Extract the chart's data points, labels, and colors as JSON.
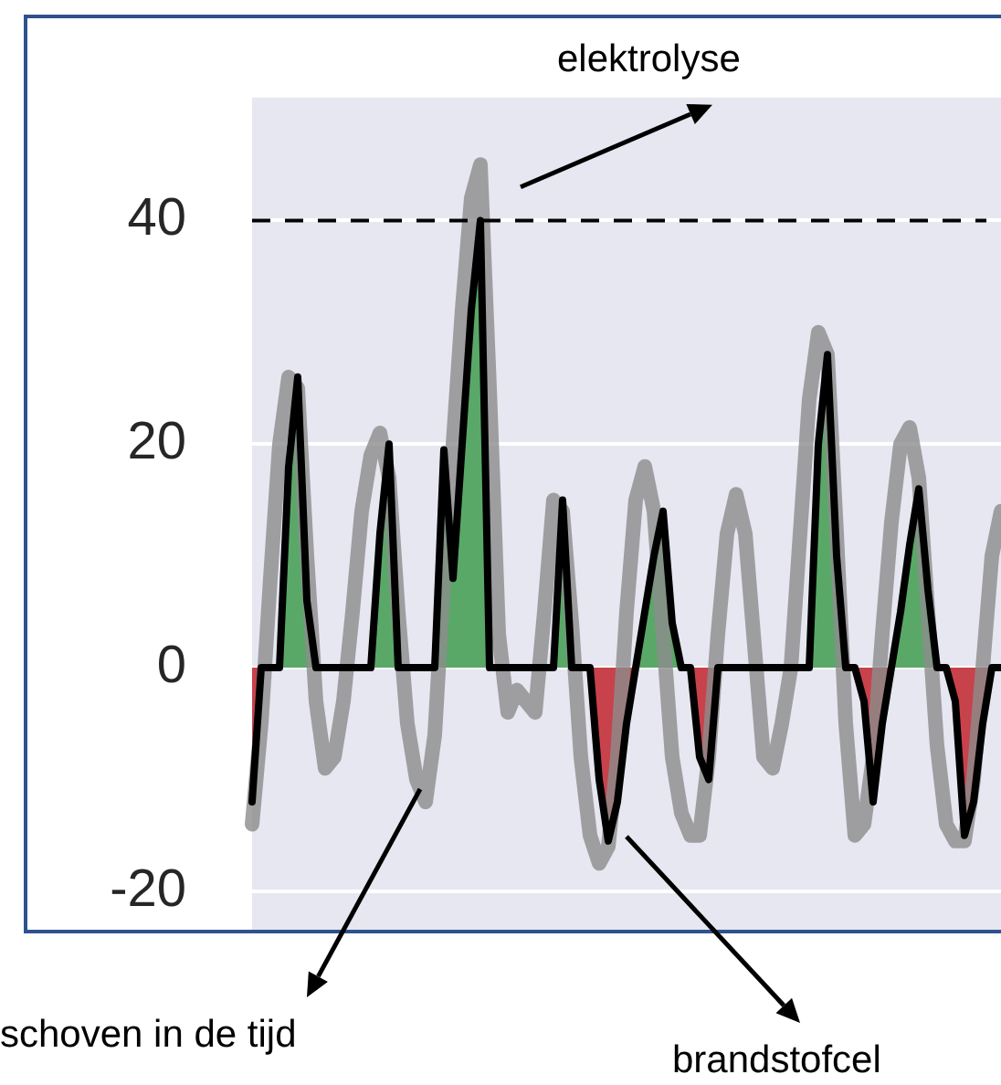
{
  "chart_data": {
    "type": "line",
    "categories": [
      null,
      null,
      null,
      null,
      null,
      null,
      null,
      null,
      null,
      null,
      null,
      null,
      null,
      null,
      null,
      null,
      null,
      null,
      null,
      null,
      null,
      null,
      null,
      null,
      null,
      null,
      null,
      null,
      null,
      null,
      null,
      null,
      null,
      null,
      null,
      null,
      null,
      null,
      null,
      null,
      null,
      null,
      null,
      null,
      null,
      null,
      null,
      null,
      null,
      null,
      null,
      null,
      null,
      null,
      null,
      null,
      null,
      null,
      null,
      null,
      null,
      null,
      null,
      null,
      null,
      null,
      null,
      null,
      null,
      null,
      null,
      null,
      null,
      null,
      null,
      null,
      null,
      null,
      null,
      null,
      null,
      null,
      null
    ],
    "ylim": [
      -23.6,
      51
    ],
    "yticks": [
      -20,
      0,
      20,
      40
    ],
    "grid": "y",
    "legend": false,
    "series": [
      {
        "type": "area",
        "color": "#5aa868",
        "values": [
          null,
          0,
          0,
          0,
          18,
          26,
          6,
          0,
          0,
          0,
          0,
          0,
          0,
          0,
          12,
          20,
          0,
          0,
          0,
          0,
          0,
          19.5,
          8,
          20,
          32,
          40,
          0,
          0,
          0,
          0,
          0,
          0,
          0,
          0,
          15,
          0,
          0,
          0,
          null,
          null,
          null,
          null,
          0,
          5,
          10,
          14,
          4,
          0,
          0,
          null,
          null,
          0,
          0,
          0,
          0,
          0,
          0,
          0,
          0,
          0,
          0,
          0,
          20,
          28,
          10,
          0,
          0,
          null,
          null,
          null,
          0,
          5,
          11,
          16,
          7,
          0,
          0,
          null,
          null,
          null,
          null,
          null,
          null
        ]
      },
      {
        "type": "area",
        "color": "#c8424c",
        "values": [
          -12,
          0,
          null,
          null,
          null,
          null,
          null,
          null,
          null,
          null,
          null,
          null,
          null,
          null,
          null,
          null,
          null,
          null,
          null,
          null,
          null,
          null,
          null,
          null,
          null,
          null,
          null,
          null,
          null,
          null,
          null,
          null,
          null,
          null,
          null,
          null,
          null,
          0,
          -10,
          -15.5,
          -12,
          -5,
          0,
          null,
          null,
          null,
          null,
          null,
          0,
          -8,
          -10,
          0,
          null,
          null,
          null,
          null,
          null,
          null,
          null,
          null,
          null,
          null,
          null,
          null,
          null,
          null,
          0,
          -3,
          -12,
          -5,
          0,
          null,
          null,
          null,
          null,
          null,
          0,
          -3,
          -15,
          -12,
          -5,
          0,
          null
        ]
      },
      {
        "color": "#8c8c8c",
        "values": [
          -14,
          -5,
          8,
          20,
          26,
          25,
          10,
          -3,
          -9,
          -8,
          -3,
          5,
          14,
          19,
          21,
          17,
          5,
          -5,
          -10,
          -12,
          -6,
          8,
          20,
          32,
          42,
          45,
          25,
          3,
          -4,
          -2,
          -3,
          -4,
          5,
          15,
          14,
          4,
          -8,
          -15,
          -17.5,
          -16,
          -8,
          5,
          15,
          18,
          14,
          3,
          -8,
          -13,
          -15,
          -15,
          -8,
          3,
          12,
          15.5,
          12,
          2,
          -8,
          -9,
          -5,
          0,
          12,
          24,
          30,
          28,
          12,
          -5,
          -15,
          -14,
          -8,
          3,
          13,
          20,
          21.5,
          17,
          5,
          -7,
          -14,
          -15.5,
          -15.5,
          -10,
          0,
          10,
          14
        ]
      },
      {
        "color": "#000000",
        "values": [
          -12,
          0,
          0,
          0,
          18,
          26,
          6,
          0,
          0,
          0,
          0,
          0,
          0,
          0,
          12,
          20,
          0,
          0,
          0,
          0,
          0,
          19.5,
          8,
          20,
          32,
          40,
          0,
          0,
          0,
          0,
          0,
          0,
          0,
          0,
          15,
          0,
          0,
          0,
          -10,
          -15.5,
          -12,
          -5,
          0,
          5,
          10,
          14,
          4,
          0,
          0,
          -8,
          -10,
          0,
          0,
          0,
          0,
          0,
          0,
          0,
          0,
          0,
          0,
          0,
          20,
          28,
          10,
          0,
          0,
          -3,
          -12,
          -5,
          0,
          5,
          11,
          16,
          7,
          0,
          0,
          -3,
          -15,
          -12,
          -5,
          0,
          0
        ]
      }
    ],
    "ref_lines": [
      {
        "axis": "y",
        "value": 40,
        "line_style": "dashed",
        "color": "#000000"
      }
    ],
    "annotations": [
      "elektrolyse",
      "schoven in de tijd",
      "brandstofcel"
    ]
  }
}
